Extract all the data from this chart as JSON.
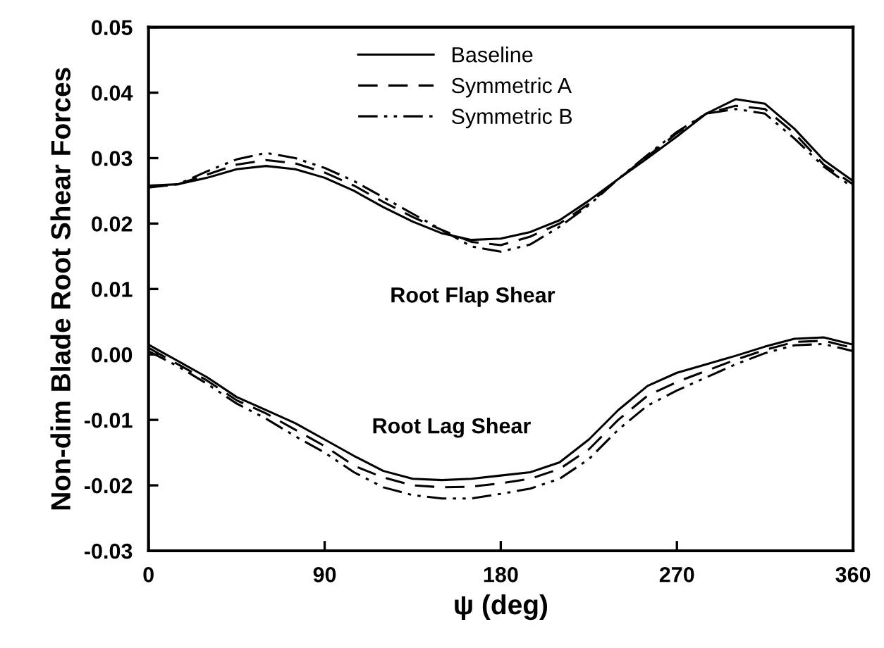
{
  "chart_data": {
    "type": "line",
    "xlabel": "ψ (deg)",
    "ylabel": "Non-dim Blade Root Shear Forces",
    "x": [
      0,
      15,
      30,
      45,
      60,
      75,
      90,
      105,
      120,
      135,
      150,
      165,
      180,
      195,
      210,
      225,
      240,
      255,
      270,
      285,
      300,
      315,
      330,
      345,
      360
    ],
    "xlim": [
      0,
      360
    ],
    "xticks": [
      0,
      90,
      180,
      270,
      360
    ],
    "ylim": [
      -0.03,
      0.05
    ],
    "yticks": [
      {
        "value": -0.03,
        "label": "-0.03"
      },
      {
        "value": -0.02,
        "label": "-0.02"
      },
      {
        "value": -0.01,
        "label": "-0.01"
      },
      {
        "value": 0,
        "label": "0.00"
      },
      {
        "value": 0.01,
        "label": "0.01"
      },
      {
        "value": 0.02,
        "label": "0.02"
      },
      {
        "value": 0.03,
        "label": "0.03"
      },
      {
        "value": 0.04,
        "label": "0.04"
      },
      {
        "value": 0.05,
        "label": "0.05"
      }
    ],
    "grid": false,
    "legend": "top",
    "marker": "none",
    "series": [
      {
        "name": "Baseline",
        "color": "#000000",
        "line_style": "solid",
        "values": [
          0.0258,
          0.026,
          0.027,
          0.0283,
          0.0288,
          0.0283,
          0.027,
          0.025,
          0.0225,
          0.0203,
          0.0185,
          0.0175,
          0.0177,
          0.0187,
          0.0205,
          0.0235,
          0.0268,
          0.03,
          0.0333,
          0.0368,
          0.039,
          0.0383,
          0.0345,
          0.0297,
          0.0265
        ]
      },
      {
        "name": "Symmetric A",
        "color": "#000000",
        "line_style": "dashed",
        "values": [
          0.0256,
          0.026,
          0.0275,
          0.029,
          0.0297,
          0.0292,
          0.0278,
          0.0258,
          0.0233,
          0.021,
          0.019,
          0.0172,
          0.0167,
          0.018,
          0.02,
          0.023,
          0.0268,
          0.0303,
          0.0338,
          0.0368,
          0.038,
          0.0375,
          0.0338,
          0.029,
          0.026
        ]
      },
      {
        "name": "Symmetric B",
        "color": "#000000",
        "line_style": "dashdotdot",
        "values": [
          0.0255,
          0.026,
          0.028,
          0.0298,
          0.0308,
          0.03,
          0.0285,
          0.0265,
          0.024,
          0.0215,
          0.019,
          0.0165,
          0.0157,
          0.0168,
          0.0195,
          0.0228,
          0.0268,
          0.0305,
          0.034,
          0.0368,
          0.0375,
          0.0368,
          0.033,
          0.0287,
          0.0255
        ]
      },
      {
        "color": "#000000",
        "line_style": "solid",
        "values": [
          0.0015,
          -0.001,
          -0.0035,
          -0.0065,
          -0.0085,
          -0.0105,
          -0.013,
          -0.0155,
          -0.0178,
          -0.019,
          -0.0192,
          -0.019,
          -0.0185,
          -0.018,
          -0.0165,
          -0.013,
          -0.0085,
          -0.0048,
          -0.0028,
          -0.0015,
          -0.0002,
          0.0012,
          0.0024,
          0.0026,
          0.0015
        ]
      },
      {
        "color": "#000000",
        "line_style": "dashed",
        "values": [
          0.001,
          -0.0015,
          -0.004,
          -0.007,
          -0.009,
          -0.0115,
          -0.014,
          -0.017,
          -0.0188,
          -0.02,
          -0.0203,
          -0.0202,
          -0.0197,
          -0.019,
          -0.0175,
          -0.0145,
          -0.01,
          -0.0063,
          -0.0042,
          -0.0025,
          -0.0008,
          0.0007,
          0.0019,
          0.0021,
          0.001
        ]
      },
      {
        "color": "#000000",
        "line_style": "dashdotdot",
        "values": [
          0.0005,
          -0.0018,
          -0.0045,
          -0.0075,
          -0.0098,
          -0.0125,
          -0.015,
          -0.018,
          -0.0203,
          -0.0215,
          -0.022,
          -0.022,
          -0.0213,
          -0.0205,
          -0.019,
          -0.016,
          -0.0115,
          -0.0078,
          -0.0055,
          -0.0035,
          -0.0015,
          0.0002,
          0.0014,
          0.0016,
          0.0005
        ]
      }
    ],
    "annotations": [
      "Root Flap Shear",
      "Root Lag Shear"
    ]
  }
}
